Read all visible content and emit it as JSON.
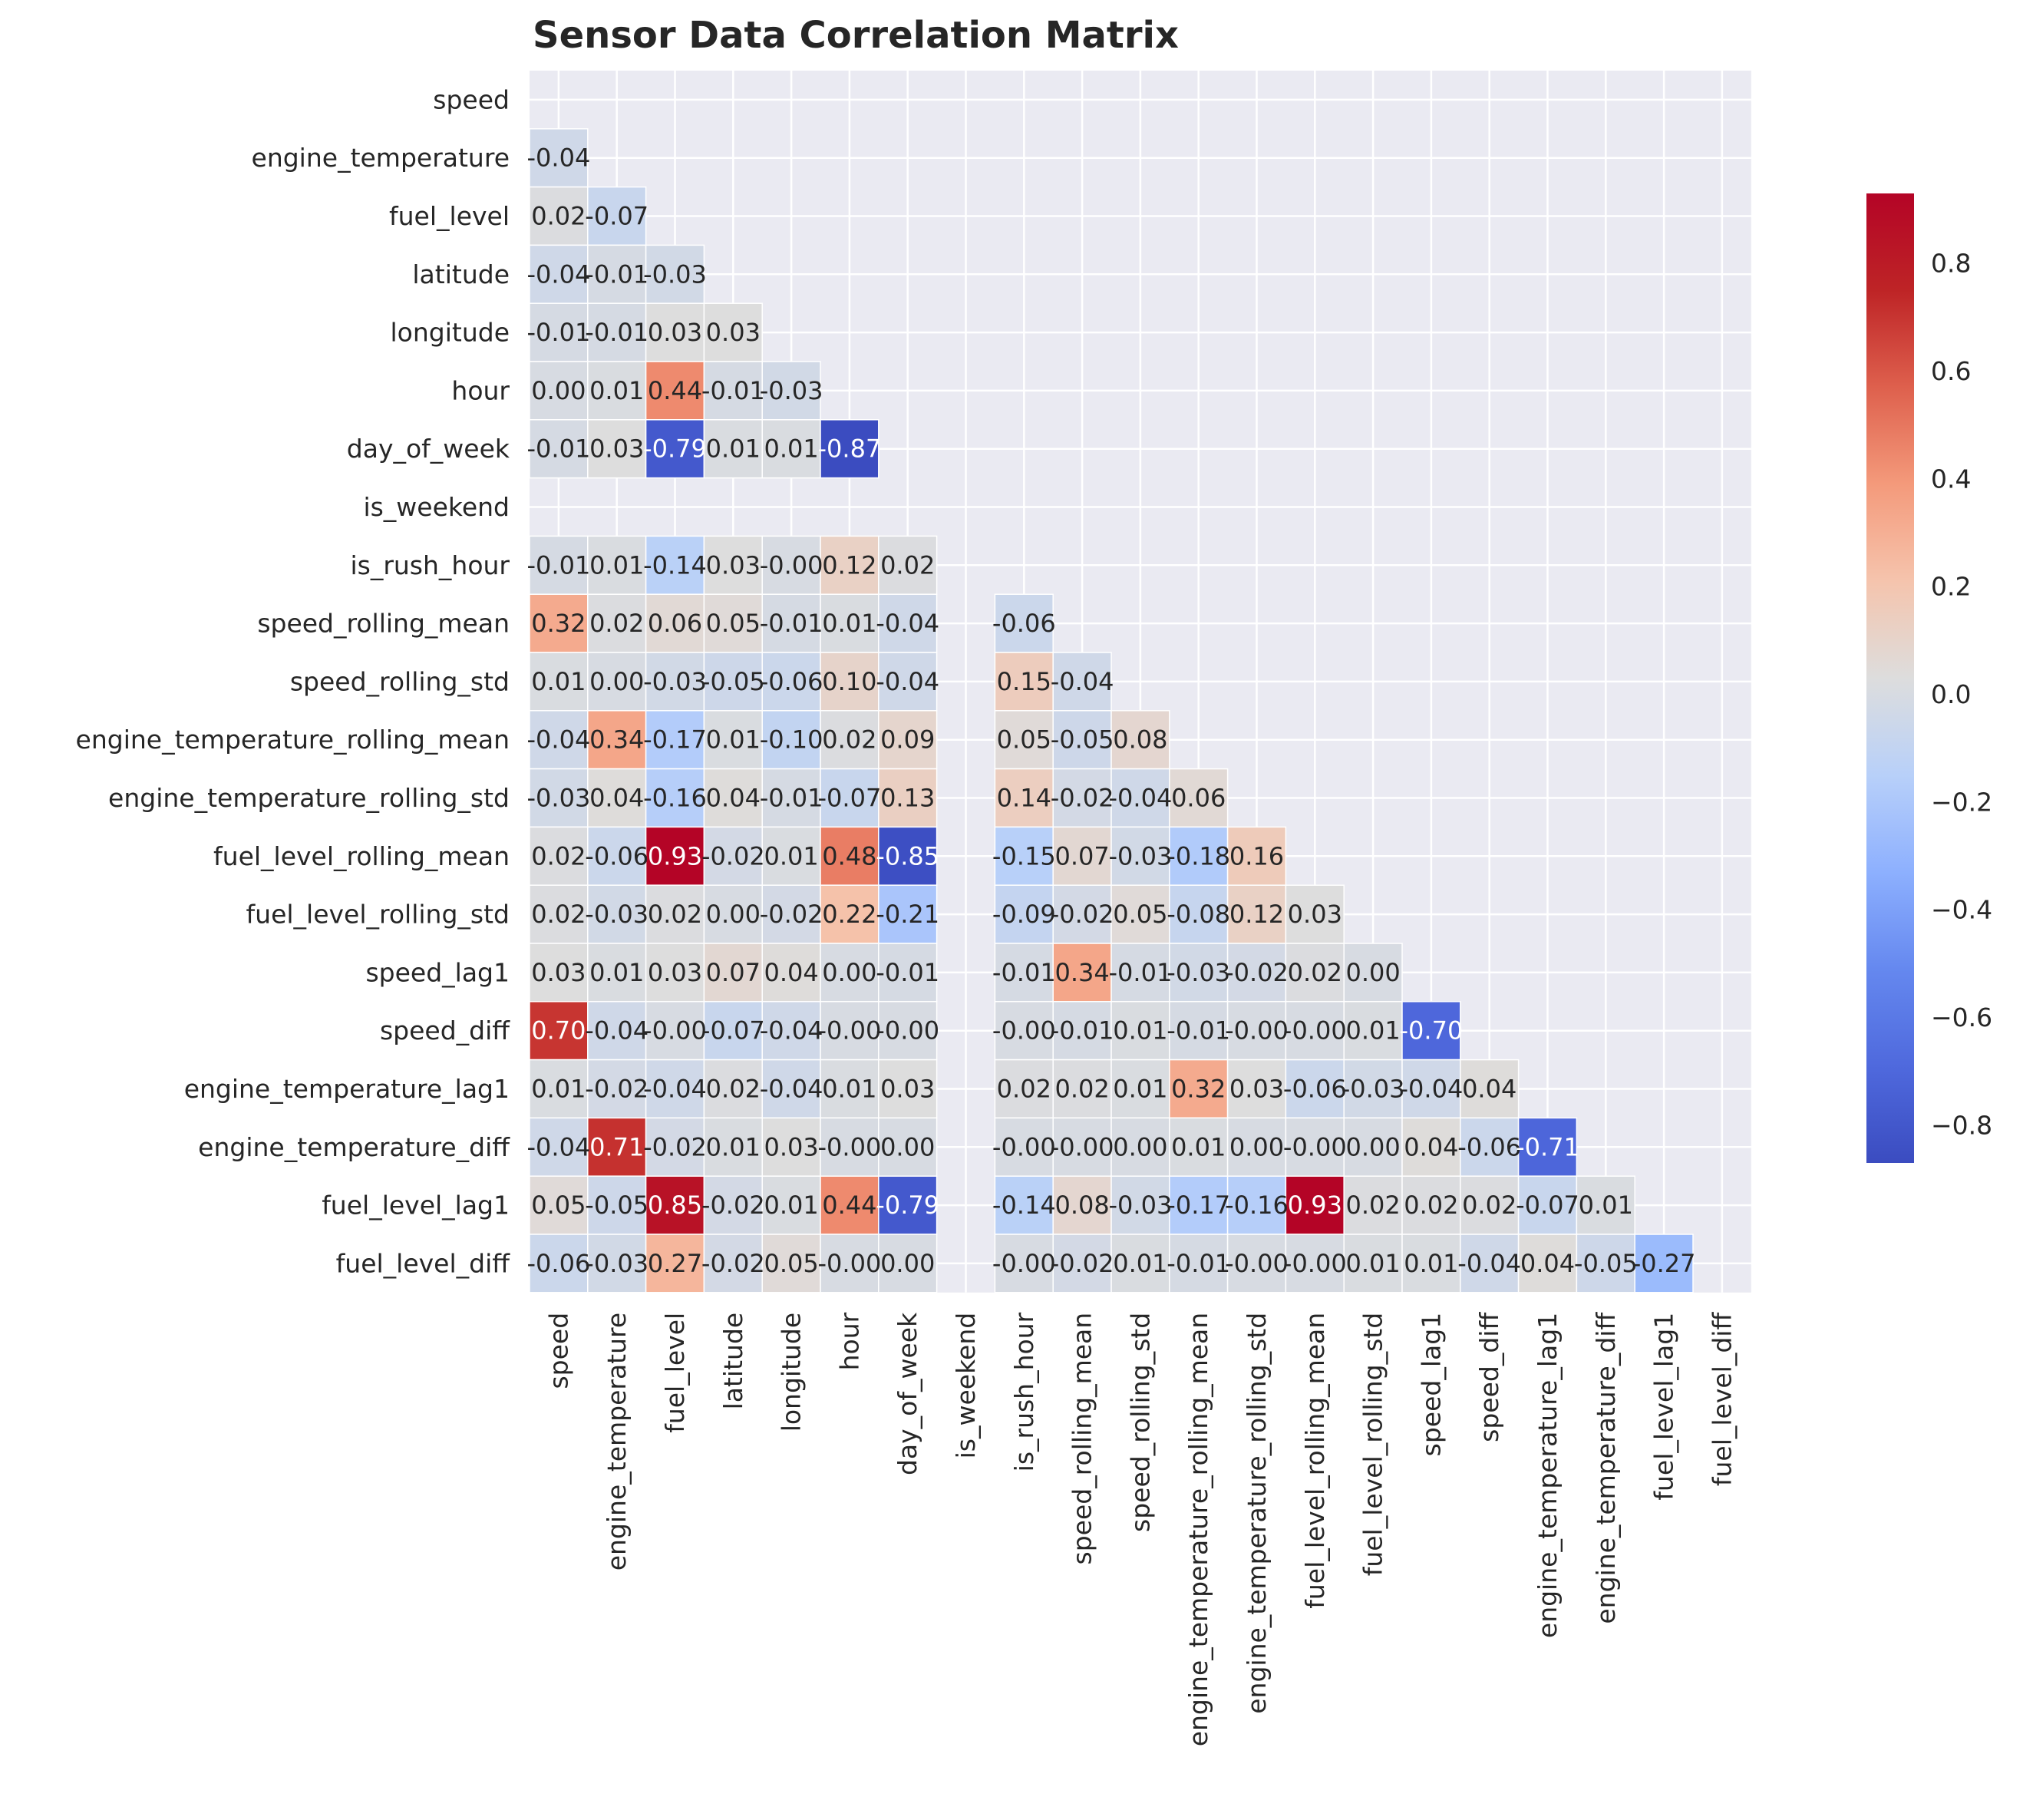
{
  "chart_data": {
    "type": "heatmap",
    "title": "Sensor Data Correlation Matrix",
    "mask": "upper-triangle-and-diagonal",
    "colormap": "coolwarm",
    "vmin": -0.87,
    "vmax": 0.93,
    "colorbar_ticks": [
      "0.8",
      "0.6",
      "0.4",
      "0.2",
      "0.0",
      "−0.2",
      "−0.4",
      "−0.6",
      "−0.8"
    ],
    "colorbar_tick_values": [
      0.8,
      0.6,
      0.4,
      0.2,
      0.0,
      -0.2,
      -0.4,
      -0.6,
      -0.8
    ],
    "variables": [
      "speed",
      "engine_temperature",
      "fuel_level",
      "latitude",
      "longitude",
      "hour",
      "day_of_week",
      "is_weekend",
      "is_rush_hour",
      "speed_rolling_mean",
      "speed_rolling_std",
      "engine_temperature_rolling_mean",
      "engine_temperature_rolling_std",
      "fuel_level_rolling_mean",
      "fuel_level_rolling_std",
      "speed_lag1",
      "speed_diff",
      "engine_temperature_lag1",
      "engine_temperature_diff",
      "fuel_level_lag1",
      "fuel_level_diff"
    ],
    "rows": [
      [],
      [
        "-0.04"
      ],
      [
        "0.02",
        "-0.07"
      ],
      [
        "-0.04",
        "-0.01",
        "-0.03"
      ],
      [
        "-0.01",
        "-0.01",
        "0.03",
        "0.03"
      ],
      [
        "0.00",
        "0.01",
        "0.44",
        "-0.01",
        "-0.03"
      ],
      [
        "-0.01",
        "0.03",
        "-0.79",
        "0.01",
        "0.01",
        "-0.87"
      ],
      [
        null,
        null,
        null,
        null,
        null,
        null,
        null
      ],
      [
        "-0.01",
        "0.01",
        "-0.14",
        "0.03",
        "-0.00",
        "0.12",
        "0.02",
        null
      ],
      [
        "0.32",
        "0.02",
        "0.06",
        "0.05",
        "-0.01",
        "0.01",
        "-0.04",
        null,
        "-0.06"
      ],
      [
        "0.01",
        "0.00",
        "-0.03",
        "-0.05",
        "-0.06",
        "0.10",
        "-0.04",
        null,
        "0.15",
        "-0.04"
      ],
      [
        "-0.04",
        "0.34",
        "-0.17",
        "0.01",
        "-0.10",
        "0.02",
        "0.09",
        null,
        "0.05",
        "-0.05",
        "0.08"
      ],
      [
        "-0.03",
        "0.04",
        "-0.16",
        "0.04",
        "-0.01",
        "-0.07",
        "0.13",
        null,
        "0.14",
        "-0.02",
        "-0.04",
        "0.06"
      ],
      [
        "0.02",
        "-0.06",
        "0.93",
        "-0.02",
        "0.01",
        "0.48",
        "-0.85",
        null,
        "-0.15",
        "0.07",
        "-0.03",
        "-0.18",
        "0.16"
      ],
      [
        "0.02",
        "-0.03",
        "0.02",
        "0.00",
        "-0.02",
        "0.22",
        "-0.21",
        null,
        "-0.09",
        "-0.02",
        "0.05",
        "-0.08",
        "0.12",
        "0.03"
      ],
      [
        "0.03",
        "0.01",
        "0.03",
        "0.07",
        "0.04",
        "0.00",
        "-0.01",
        null,
        "-0.01",
        "0.34",
        "-0.01",
        "-0.03",
        "-0.02",
        "0.02",
        "0.00"
      ],
      [
        "0.70",
        "-0.04",
        "-0.00",
        "-0.07",
        "-0.04",
        "-0.00",
        "-0.00",
        null,
        "-0.00",
        "-0.01",
        "0.01",
        "-0.01",
        "-0.00",
        "-0.00",
        "0.01",
        "-0.70"
      ],
      [
        "0.01",
        "-0.02",
        "-0.04",
        "0.02",
        "-0.04",
        "0.01",
        "0.03",
        null,
        "0.02",
        "0.02",
        "0.01",
        "0.32",
        "0.03",
        "-0.06",
        "-0.03",
        "-0.04",
        "0.04"
      ],
      [
        "-0.04",
        "0.71",
        "-0.02",
        "0.01",
        "0.03",
        "-0.00",
        "0.00",
        null,
        "-0.00",
        "-0.00",
        "0.00",
        "0.01",
        "0.00",
        "-0.00",
        "0.00",
        "0.04",
        "-0.06",
        "-0.71"
      ],
      [
        "0.05",
        "-0.05",
        "0.85",
        "-0.02",
        "0.01",
        "0.44",
        "-0.79",
        null,
        "-0.14",
        "0.08",
        "-0.03",
        "-0.17",
        "-0.16",
        "0.93",
        "0.02",
        "0.02",
        "0.02",
        "-0.07",
        "0.01"
      ],
      [
        "-0.06",
        "-0.03",
        "0.27",
        "-0.02",
        "0.05",
        "-0.00",
        "0.00",
        null,
        "-0.00",
        "-0.02",
        "0.01",
        "-0.01",
        "-0.00",
        "-0.00",
        "0.01",
        "0.01",
        "-0.04",
        "0.04",
        "-0.05",
        "-0.27"
      ]
    ]
  }
}
